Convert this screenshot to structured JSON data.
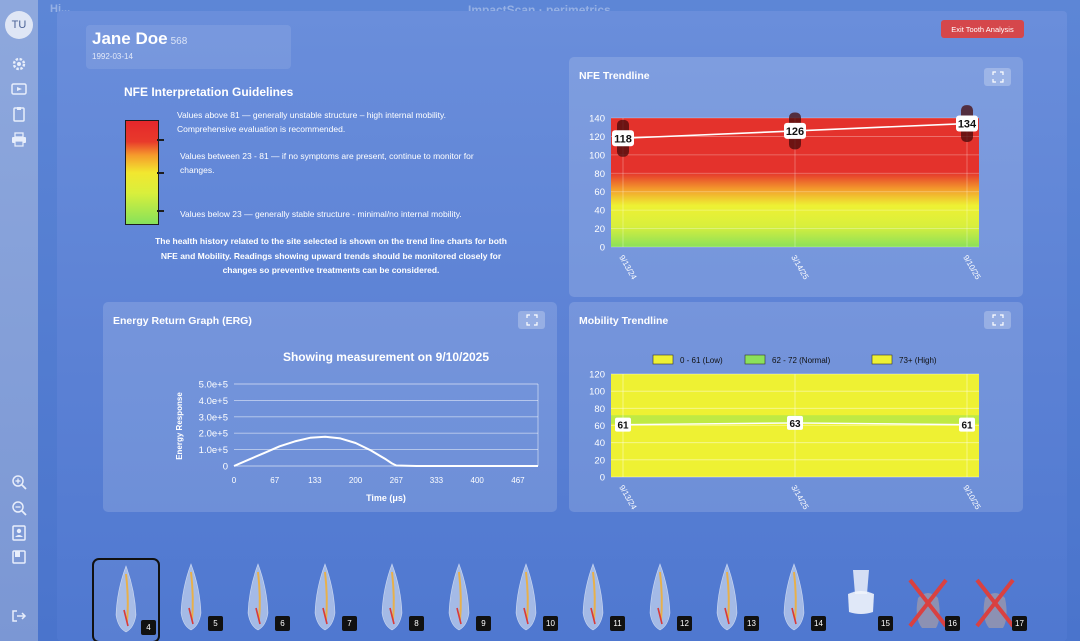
{
  "user": {
    "initials": "TU"
  },
  "topbar": {
    "left_faded": "Hi...",
    "center_faded": "ImpactScan · perimetrics"
  },
  "patient": {
    "name": "Jane Doe",
    "id": "568",
    "dob": "1992-03-14"
  },
  "exit_button": "Exit Tooth Analysis",
  "guidelines": {
    "title": "NFE Interpretation Guidelines",
    "high_line1": "Values above 81 — generally unstable structure – high internal mobility.",
    "high_line2": "Comprehensive evaluation is recommended.",
    "mid_line1": "Values between 23 - 81 — if no symptoms are present, continue to monitor for",
    "mid_line2": "changes.",
    "low": "Values below 23 — generally stable structure - minimal/no internal mobility.",
    "note_line1": "The health history related to the site selected is shown on the trend line charts for both",
    "note_line2": "NFE and Mobility. Readings showing upward trends should be monitored closely for",
    "note_line3": "changes so preventive treatments can be considered."
  },
  "nfe_panel": {
    "title": "NFE Trendline"
  },
  "erg_panel": {
    "title": "Energy Return Graph (ERG)"
  },
  "mobility_panel": {
    "title": "Mobility Trendline"
  },
  "colors": {
    "red": "#e4322c",
    "orange": "#f39a2c",
    "yellow": "#eef133",
    "green": "#8be15a",
    "exit": "#d5474b"
  },
  "chart_data": [
    {
      "id": "nfe",
      "type": "line",
      "title": "NFE Trendline",
      "x": [
        "9/13/24",
        "3/14/25",
        "9/10/25"
      ],
      "series": [
        {
          "values": [
            118,
            126,
            134
          ]
        }
      ],
      "ylim": [
        0,
        140
      ],
      "yticks": [
        0,
        20,
        40,
        60,
        80,
        100,
        120,
        140
      ],
      "value_labels": [
        "118",
        "126",
        "134"
      ],
      "background_bands": "red above 81, yellow 23-81, green below 23"
    },
    {
      "id": "erg",
      "type": "line",
      "title": "Showing measurement on 9/10/2025",
      "xlabel": "Time (μs)",
      "ylabel": "Energy Response",
      "xticks": [
        "0",
        "67",
        "133",
        "200",
        "267",
        "333",
        "400",
        "467"
      ],
      "yticks": [
        "0",
        "1.0e+5",
        "2.0e+5",
        "3.0e+5",
        "4.0e+5",
        "5.0e+5"
      ],
      "xlim": [
        0,
        500
      ],
      "ylim": [
        0,
        500000
      ],
      "x": [
        0,
        25,
        50,
        75,
        100,
        125,
        150,
        175,
        200,
        225,
        250,
        260,
        267,
        300,
        350,
        400,
        450,
        500
      ],
      "series": [
        {
          "values": [
            0,
            40000,
            80000,
            120000,
            150000,
            172000,
            178000,
            168000,
            140000,
            95000,
            40000,
            15000,
            3000,
            0,
            0,
            0,
            0,
            0
          ]
        }
      ]
    },
    {
      "id": "mobility",
      "type": "line",
      "title": "Mobility Trendline",
      "x": [
        "9/13/24",
        "3/14/25",
        "9/10/25"
      ],
      "series": [
        {
          "values": [
            61,
            63,
            61
          ]
        }
      ],
      "ylim": [
        0,
        120
      ],
      "yticks": [
        0,
        20,
        40,
        60,
        80,
        100,
        120
      ],
      "value_labels": [
        "61",
        "63",
        "61"
      ],
      "legend": [
        "0 - 61 (Low)",
        "62 - 72 (Normal)",
        "73+ (High)"
      ],
      "legend_colors": [
        "#eef133",
        "#8be15a",
        "#eef133"
      ]
    }
  ],
  "teeth": [
    {
      "num": "4",
      "selected": true,
      "missing": false
    },
    {
      "num": "5",
      "selected": false,
      "missing": false
    },
    {
      "num": "6",
      "selected": false,
      "missing": false
    },
    {
      "num": "7",
      "selected": false,
      "missing": false
    },
    {
      "num": "8",
      "selected": false,
      "missing": false
    },
    {
      "num": "9",
      "selected": false,
      "missing": false
    },
    {
      "num": "10",
      "selected": false,
      "missing": false
    },
    {
      "num": "11",
      "selected": false,
      "missing": false
    },
    {
      "num": "12",
      "selected": false,
      "missing": false
    },
    {
      "num": "13",
      "selected": false,
      "missing": false
    },
    {
      "num": "14",
      "selected": false,
      "missing": false
    },
    {
      "num": "15",
      "selected": false,
      "missing": false
    },
    {
      "num": "16",
      "selected": false,
      "missing": true
    },
    {
      "num": "17",
      "selected": false,
      "missing": true
    }
  ]
}
